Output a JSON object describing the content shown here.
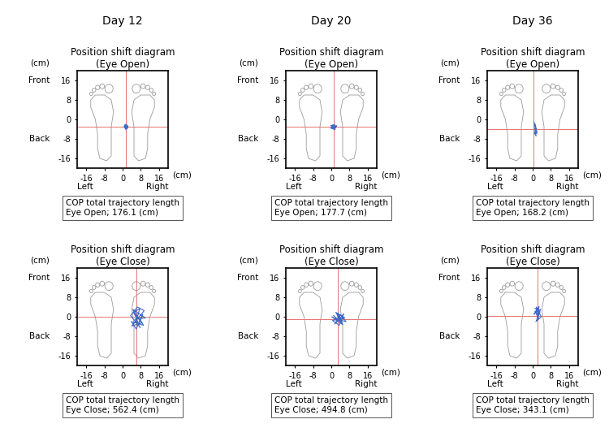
{
  "chart_data": [
    {
      "type": "line",
      "header": "Day 12",
      "title": "Position shift diagram\n(Eye Open)",
      "xlabel": "(cm)",
      "ylabel": "(cm)",
      "x_end_labels": [
        "Left",
        "Right"
      ],
      "y_end_labels": [
        "Front",
        "Back"
      ],
      "x": [
        1.0,
        2.2,
        1.4,
        0.6,
        1.8,
        2.4,
        1.2,
        0.8,
        2.0,
        1.6,
        0.9,
        2.3,
        1.5,
        1.1,
        1.9
      ],
      "values": [
        -2.5,
        -3.4,
        -4.0,
        -3.0,
        -2.2,
        -2.9,
        -3.6,
        -2.4,
        -3.8,
        -2.6,
        -3.3,
        -3.1,
        -4.2,
        -2.0,
        -3.0
      ],
      "color": "#4169c8",
      "center": {
        "x": 1.5,
        "y": -3,
        "color": "#e57373"
      },
      "xlim": [
        -20,
        20
      ],
      "ylim": [
        -20,
        20
      ],
      "xticks": [
        -16,
        -8,
        0,
        8,
        16
      ],
      "yticks": [
        -16,
        -8,
        0,
        8,
        16
      ],
      "annotations": [
        "COP total trajectory length",
        "Eye Open; 176.1 (cm)"
      ]
    },
    {
      "type": "line",
      "header": "Day 20",
      "title": "Position shift diagram\n(Eye Open)",
      "xlabel": "(cm)",
      "ylabel": "(cm)",
      "x_end_labels": [
        "Left",
        "Right"
      ],
      "y_end_labels": [
        "Front",
        "Back"
      ],
      "x": [
        0.2,
        1.8,
        0.6,
        2.2,
        -0.3,
        1.2,
        2.4,
        0.0,
        1.5,
        0.8,
        2.0,
        -0.2,
        1.0,
        1.7,
        0.4
      ],
      "values": [
        -2.8,
        -3.5,
        -2.2,
        -3.0,
        -3.6,
        -4.0,
        -2.6,
        -3.1,
        -2.1,
        -3.8,
        -3.3,
        -2.5,
        -3.0,
        -4.2,
        -3.4
      ],
      "color": "#4169c8",
      "center": {
        "x": 1,
        "y": -3,
        "color": "#e57373"
      },
      "xlim": [
        -20,
        20
      ],
      "ylim": [
        -20,
        20
      ],
      "xticks": [
        -16,
        -8,
        0,
        8,
        16
      ],
      "yticks": [
        -16,
        -8,
        0,
        8,
        16
      ],
      "annotations": [
        "COP total trajectory length",
        "Eye Open; 177.7 (cm)"
      ]
    },
    {
      "type": "line",
      "header": "Day 36",
      "title": "Position shift diagram\n(Eye Open)",
      "xlabel": "(cm)",
      "ylabel": "(cm)",
      "x_end_labels": [
        "Left",
        "Right"
      ],
      "y_end_labels": [
        "Front",
        "Back"
      ],
      "x": [
        0.5,
        1.0,
        0.6,
        1.4,
        0.8,
        1.6,
        1.0,
        1.8,
        1.2,
        0.7,
        1.5,
        1.1,
        1.9,
        1.3,
        1.0
      ],
      "values": [
        -1.0,
        -2.2,
        -3.0,
        -2.6,
        -4.0,
        -3.6,
        -5.0,
        -4.8,
        -6.0,
        -5.5,
        -6.8,
        -4.4,
        -5.8,
        -3.2,
        -1.8
      ],
      "color": "#4169c8",
      "center": {
        "x": 0.5,
        "y": -4,
        "color": "#e57373"
      },
      "xlim": [
        -20,
        20
      ],
      "ylim": [
        -20,
        20
      ],
      "xticks": [
        -16,
        -8,
        0,
        8,
        16
      ],
      "yticks": [
        -16,
        -8,
        0,
        8,
        16
      ],
      "annotations": [
        "COP total trajectory length",
        "Eye Open; 168.2 (cm)"
      ]
    },
    {
      "type": "line",
      "title": "Position shift diagram\n(Eye Close)",
      "xlabel": "(cm)",
      "ylabel": "(cm)",
      "x_end_labels": [
        "Left",
        "Right"
      ],
      "y_end_labels": [
        "Front",
        "Back"
      ],
      "x": [
        5.0,
        8.5,
        4.0,
        9.5,
        6.5,
        3.5,
        7.8,
        5.5,
        10.0,
        4.5,
        7.0,
        8.8,
        6.0,
        3.8,
        9.2,
        5.2,
        7.5,
        6.3
      ],
      "values": [
        1.5,
        -2.5,
        -3.8,
        2.5,
        4.0,
        0.5,
        -4.5,
        -1.0,
        -0.5,
        3.0,
        -3.0,
        1.0,
        -5.0,
        -2.0,
        -3.5,
        2.2,
        3.2,
        -0.8
      ],
      "color": "#4169c8",
      "center": {
        "x": 6,
        "y": 0,
        "color": "#e57373"
      },
      "xlim": [
        -20,
        20
      ],
      "ylim": [
        -20,
        20
      ],
      "xticks": [
        -16,
        -8,
        0,
        8,
        16
      ],
      "yticks": [
        -16,
        -8,
        0,
        8,
        16
      ],
      "annotations": [
        "COP total trajectory length",
        "Eye Close; 562.4 (cm)"
      ]
    },
    {
      "type": "line",
      "title": "Position shift diagram\n(Eye Close)",
      "xlabel": "(cm)",
      "ylabel": "(cm)",
      "x_end_labels": [
        "Left",
        "Right"
      ],
      "y_end_labels": [
        "Front",
        "Back"
      ],
      "x": [
        1.0,
        4.5,
        2.0,
        6.0,
        0.5,
        3.5,
        5.5,
        1.5,
        4.0,
        6.5,
        2.5,
        0.2,
        5.0,
        3.0,
        2.8
      ],
      "values": [
        0.5,
        -2.5,
        1.8,
        -0.5,
        -1.5,
        -3.5,
        1.2,
        -3.0,
        0.8,
        -2.0,
        -1.0,
        0.0,
        -3.2,
        1.5,
        -1.8
      ],
      "color": "#4169c8",
      "center": {
        "x": 3,
        "y": -1,
        "color": "#e57373"
      },
      "xlim": [
        -20,
        20
      ],
      "ylim": [
        -20,
        20
      ],
      "xticks": [
        -16,
        -8,
        0,
        8,
        16
      ],
      "yticks": [
        -16,
        -8,
        0,
        8,
        16
      ],
      "annotations": [
        "COP total trajectory length",
        "Eye Close; 494.8 (cm)"
      ]
    },
    {
      "type": "line",
      "title": "Position shift diagram\n(Eye Close)",
      "xlabel": "(cm)",
      "ylabel": "(cm)",
      "x_end_labels": [
        "Left",
        "Right"
      ],
      "y_end_labels": [
        "Front",
        "Back"
      ],
      "x": [
        1.0,
        3.2,
        1.8,
        2.8,
        0.6,
        2.2,
        3.8,
        1.4,
        2.6,
        1.0,
        3.5,
        2.0,
        1.6,
        3.0
      ],
      "values": [
        3.5,
        2.0,
        -1.5,
        4.2,
        1.0,
        2.8,
        0.0,
        -2.0,
        -0.5,
        2.2,
        3.0,
        0.2,
        4.0,
        1.4
      ],
      "color": "#4169c8",
      "center": {
        "x": 2,
        "y": 0.5,
        "color": "#e57373"
      },
      "xlim": [
        -20,
        20
      ],
      "ylim": [
        -20,
        20
      ],
      "xticks": [
        -16,
        -8,
        0,
        8,
        16
      ],
      "yticks": [
        -16,
        -8,
        0,
        8,
        16
      ],
      "annotations": [
        "COP total trajectory length",
        "Eye Close; 343.1 (cm)"
      ]
    }
  ]
}
